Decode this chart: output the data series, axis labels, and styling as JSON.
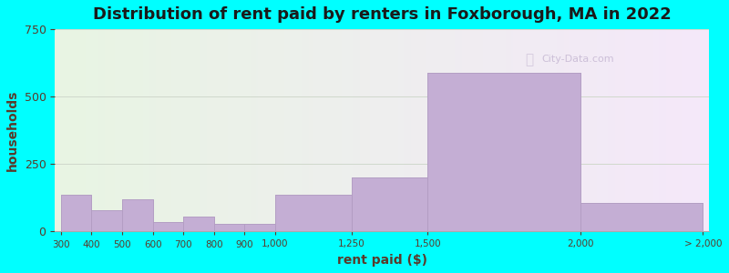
{
  "title": "Distribution of rent paid by renters in Foxborough, MA in 2022",
  "xlabel": "rent paid ($)",
  "ylabel": "households",
  "bar_color": "#c4aed4",
  "bar_edge_color": "#b09ac0",
  "background_color": "#00ffff",
  "plot_bg_color": "#e8f5e0",
  "watermark": "City-Data.com",
  "title_fontsize": 13,
  "axis_label_fontsize": 10,
  "ylim": [
    0,
    750
  ],
  "yticks": [
    0,
    250,
    500,
    750
  ],
  "bin_edges": [
    300,
    400,
    500,
    600,
    700,
    800,
    900,
    1000,
    1250,
    1500,
    2000,
    2400
  ],
  "bin_heights": [
    135,
    80,
    120,
    35,
    55,
    30,
    30,
    135,
    200,
    590,
    105
  ],
  "xtick_positions": [
    300,
    400,
    500,
    600,
    700,
    800,
    900,
    1000,
    1250,
    1500,
    2000
  ],
  "xtick_labels": [
    "300",
    "400",
    "500",
    "600",
    "700",
    "800",
    "9001,000",
    "1,250",
    "1,500",
    "2,000",
    "> 2,000"
  ],
  "x_display_max": 2500
}
